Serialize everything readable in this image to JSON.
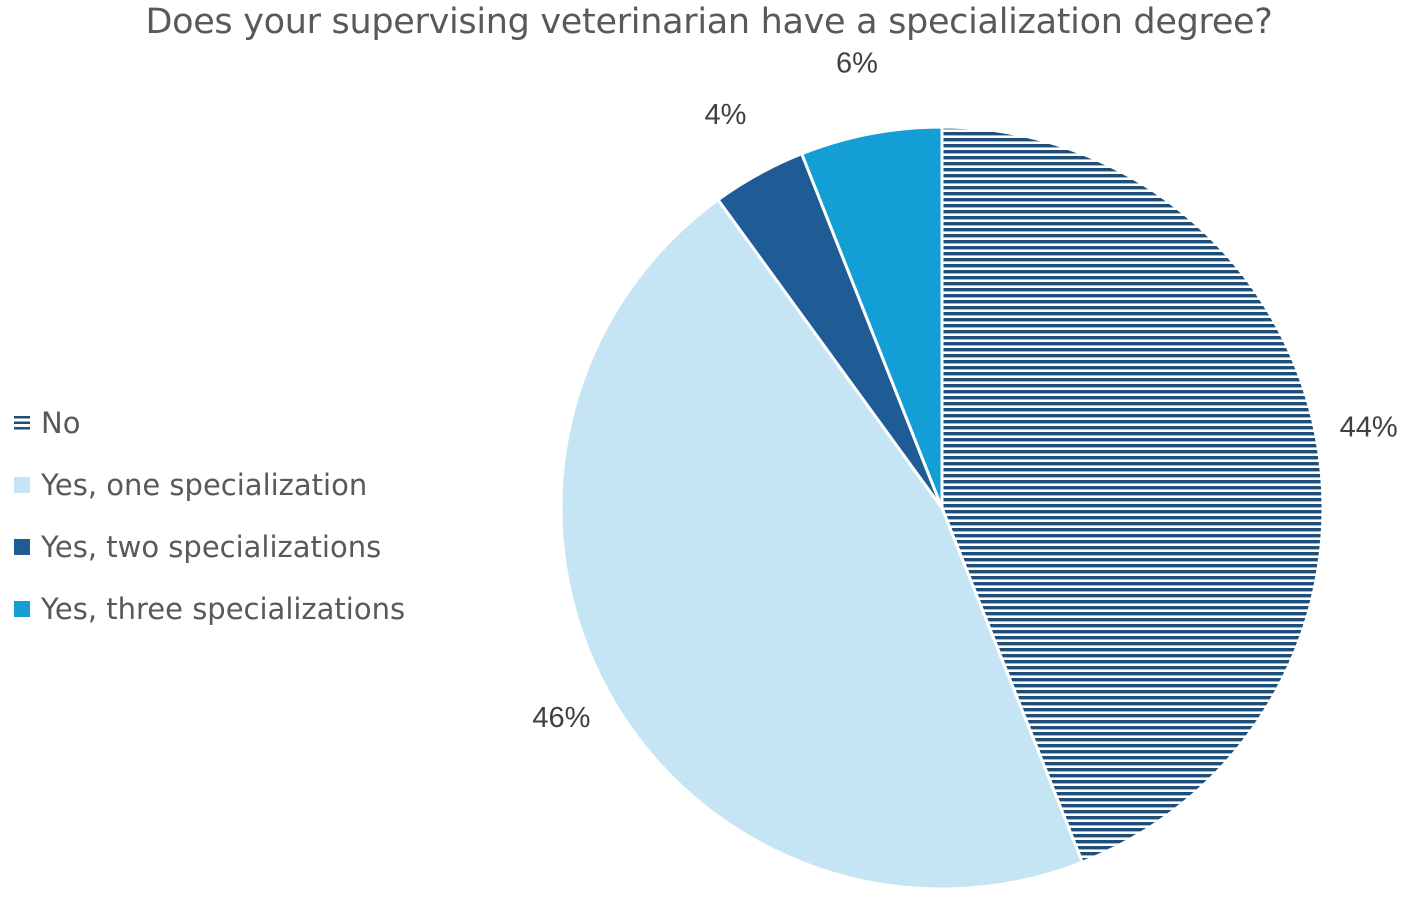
{
  "chart_data": {
    "type": "pie",
    "title": "Does your supervising veterinarian have a specialization degree?",
    "categories": [
      "No",
      "Yes, one specialization",
      "Yes, two specializations",
      "Yes, three specializations"
    ],
    "values": [
      44,
      46,
      4,
      6
    ],
    "labels": [
      "44%",
      "46%",
      "4%",
      "6%"
    ],
    "colors": [
      "#1F4E79",
      "#C5E4F4",
      "#1F5B94",
      "#139FD6"
    ],
    "patterns": [
      "horizontal-stripes",
      "solid",
      "solid",
      "solid"
    ],
    "start_angle_deg": 0,
    "direction": "clockwise",
    "legend_position": "left"
  }
}
